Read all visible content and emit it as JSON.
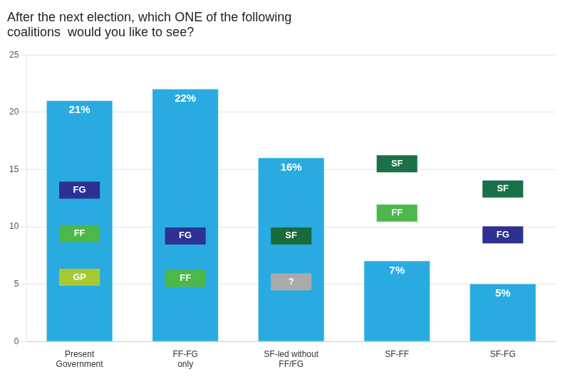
{
  "chart_data": {
    "type": "bar",
    "title": "After the next election, which ONE of the following\ncoalitions  would you like to see?",
    "categories": [
      "Present\nGovernment",
      "FF-FG\nonly",
      "SF-led without\nFF/FG",
      "SF-FF",
      "SF-FG"
    ],
    "values": [
      21,
      22,
      16,
      7,
      5
    ],
    "value_labels": [
      "21%",
      "22%",
      "16%",
      "7%",
      "5%"
    ],
    "data_labels": true,
    "color": "#29ABE2",
    "ylim": [
      0,
      25
    ],
    "yticks": [
      0,
      5,
      10,
      15,
      20,
      25
    ],
    "grid": true,
    "annotations": [
      {
        "category": "Present\nGovernment",
        "text": "FG",
        "color": "#2E3192",
        "y": 13.2
      },
      {
        "category": "Present\nGovernment",
        "text": "FF",
        "color": "#4DB849",
        "y": 9.4
      },
      {
        "category": "Present\nGovernment",
        "text": "GP",
        "color": "#A8C832",
        "y": 5.6
      },
      {
        "category": "FF-FG\nonly",
        "text": "FG",
        "color": "#2E3192",
        "y": 9.2
      },
      {
        "category": "FF-FG\nonly",
        "text": "FF",
        "color": "#4DB849",
        "y": 5.5
      },
      {
        "category": "SF-led without\nFF/FG",
        "text": "SF",
        "color": "#1A6B3C",
        "y": 9.2
      },
      {
        "category": "SF-led without\nFF/FG",
        "text": "?",
        "color": "#AAAAAA",
        "y": 5.2
      },
      {
        "category": "SF-FF",
        "text": "SF",
        "color": "#1A7048",
        "y": 15.5
      },
      {
        "category": "SF-FF",
        "text": "FF",
        "color": "#4DB849",
        "y": 11.2
      },
      {
        "category": "SF-FG",
        "text": "SF",
        "color": "#1A7048",
        "y": 13.3
      },
      {
        "category": "SF-FG",
        "text": "FG",
        "color": "#2E3192",
        "y": 9.3
      }
    ]
  }
}
